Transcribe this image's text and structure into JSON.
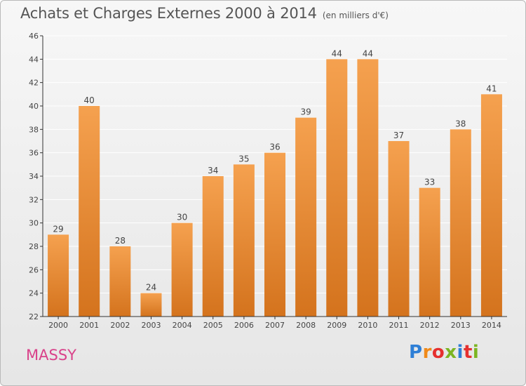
{
  "header": {
    "title": "Achats et Charges Externes 2000 à 2014",
    "subtitle": "(en milliers d'€)"
  },
  "footer": {
    "place": "MASSY",
    "logo_letters": [
      "P",
      "r",
      "o",
      "x",
      "i",
      "t",
      "i"
    ],
    "logo_colors": [
      "#2e7fd6",
      "#f08a19",
      "#e5302f",
      "#7cb522",
      "#2e7fd6",
      "#e5302f",
      "#7cb522"
    ]
  },
  "colors": {
    "bar_light": "#f5a14f",
    "bar_dark": "#d4731d",
    "axis": "#333333",
    "grid": "#ffffff"
  },
  "chart_data": {
    "type": "bar",
    "title": "Achats et Charges Externes 2000 à 2014",
    "subtitle": "(en milliers d'€)",
    "categories": [
      "2000",
      "2001",
      "2002",
      "2003",
      "2004",
      "2005",
      "2006",
      "2007",
      "2008",
      "2009",
      "2010",
      "2011",
      "2012",
      "2013",
      "2014"
    ],
    "values": [
      29,
      40,
      28,
      24,
      30,
      34,
      35,
      36,
      39,
      44,
      44,
      37,
      33,
      38,
      41
    ],
    "ylim": [
      22,
      46
    ],
    "yticks": [
      22,
      24,
      26,
      28,
      30,
      32,
      34,
      36,
      38,
      40,
      42,
      44,
      46
    ],
    "grid": true,
    "legend": false
  }
}
